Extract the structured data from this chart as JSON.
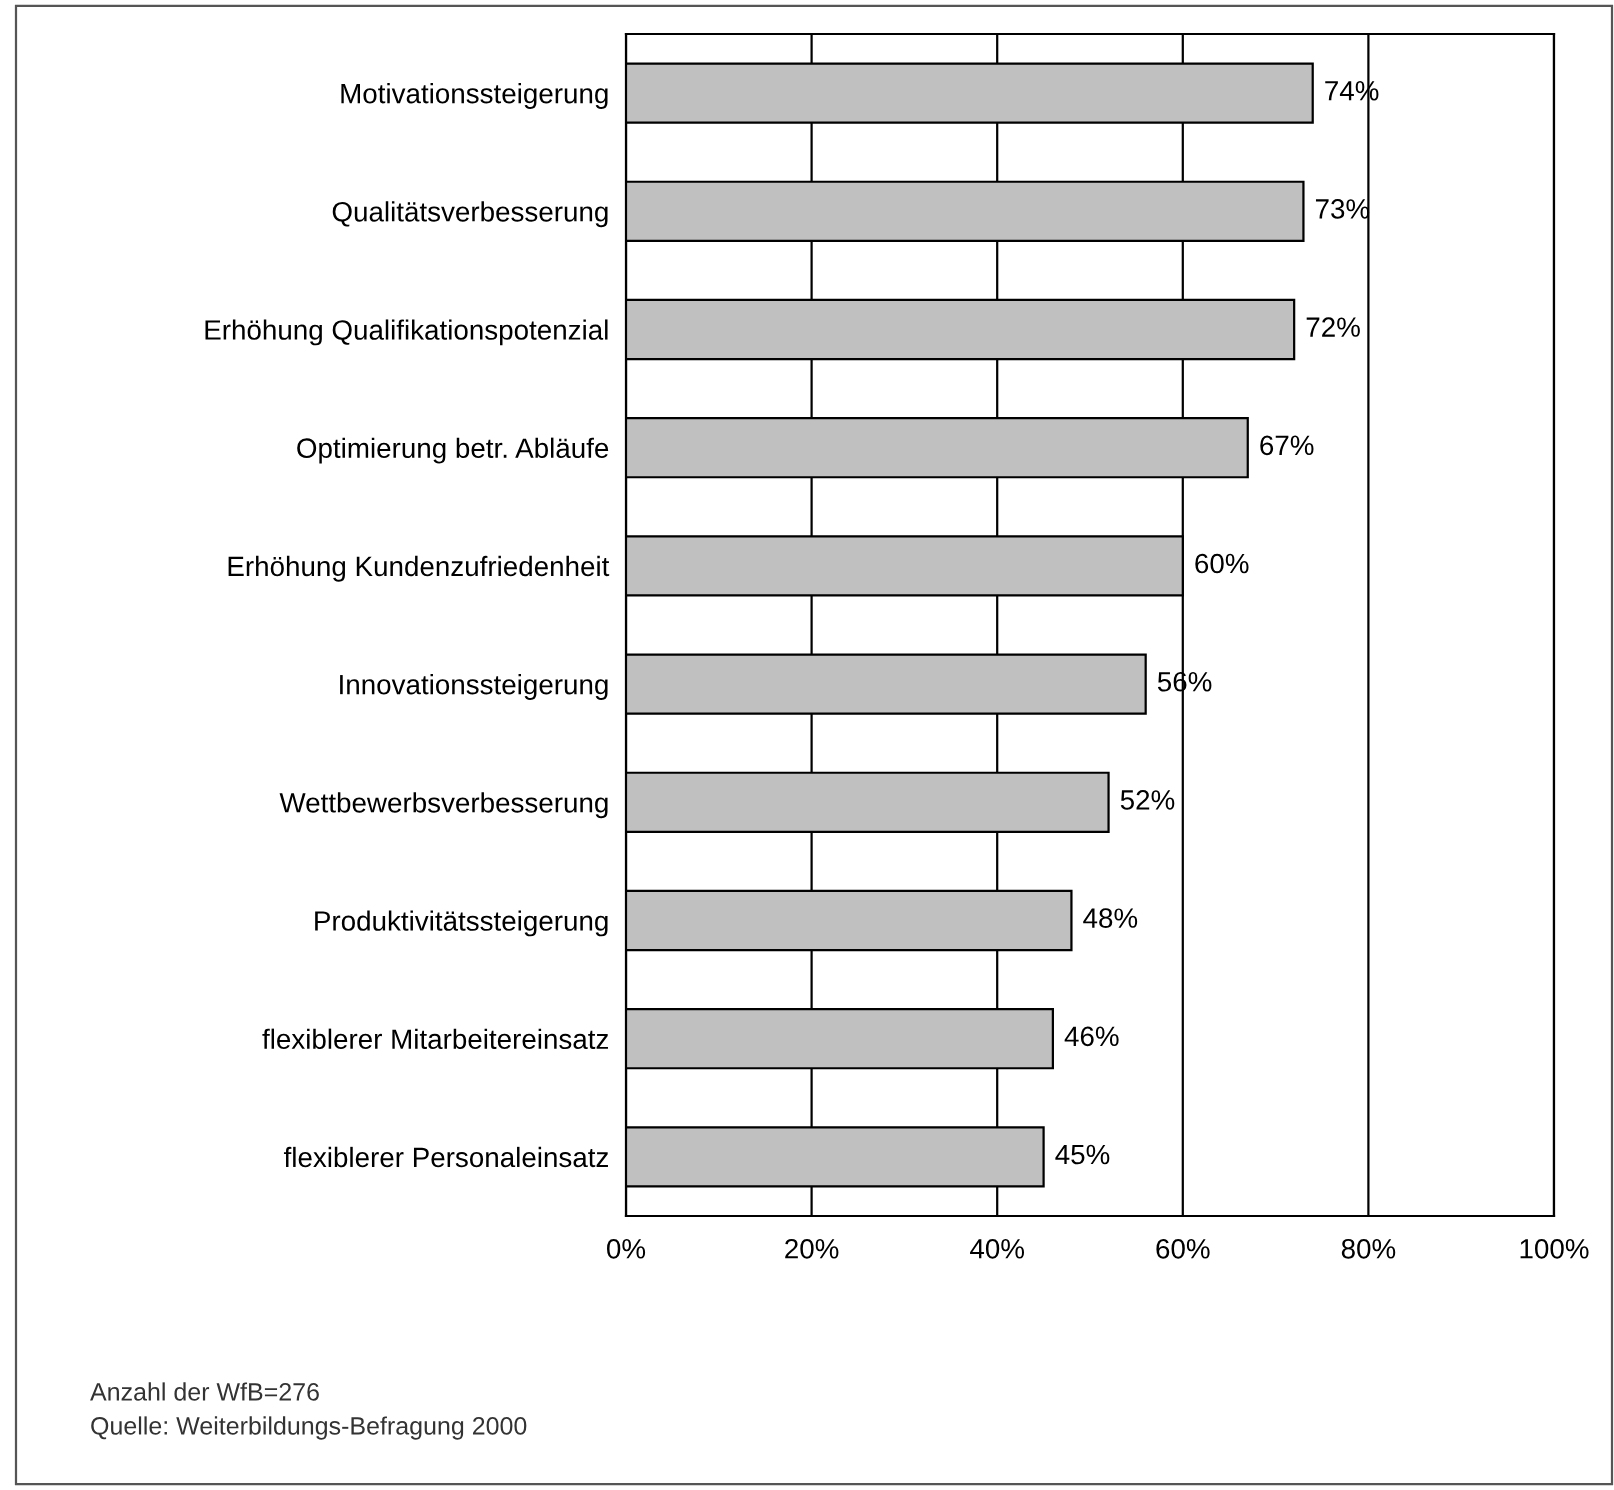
{
  "chart_data": {
    "type": "bar",
    "orientation": "horizontal",
    "categories": [
      "Motivationssteigerung",
      "Qualitätsverbesserung",
      "Erhöhung Qualifikationspotenzial",
      "Optimierung betr. Abläufe",
      "Erhöhung Kundenzufriedenheit",
      "Innovationssteigerung",
      "Wettbewerbsverbesserung",
      "Produktivitätssteigerung",
      "flexiblerer Mitarbeitereinsatz",
      "flexiblerer Personaleinsatz"
    ],
    "values": [
      74,
      73,
      72,
      67,
      60,
      56,
      52,
      48,
      46,
      45
    ],
    "value_labels": [
      "74%",
      "73%",
      "72%",
      "67%",
      "60%",
      "56%",
      "52%",
      "48%",
      "46%",
      "45%"
    ],
    "color": "#c0c0c0",
    "xlim": [
      0,
      100
    ],
    "xticks": [
      {
        "value": 0,
        "label": "0%"
      },
      {
        "value": 20,
        "label": "20%"
      },
      {
        "value": 40,
        "label": "40%"
      },
      {
        "value": 60,
        "label": "60%"
      },
      {
        "value": 80,
        "label": "80%"
      },
      {
        "value": 100,
        "label": "100%"
      }
    ],
    "grid": "x",
    "legend": false,
    "annotations": [
      "Anzahl der WfB=276",
      "Quelle: Weiterbildungs-Befragung 2000"
    ]
  }
}
